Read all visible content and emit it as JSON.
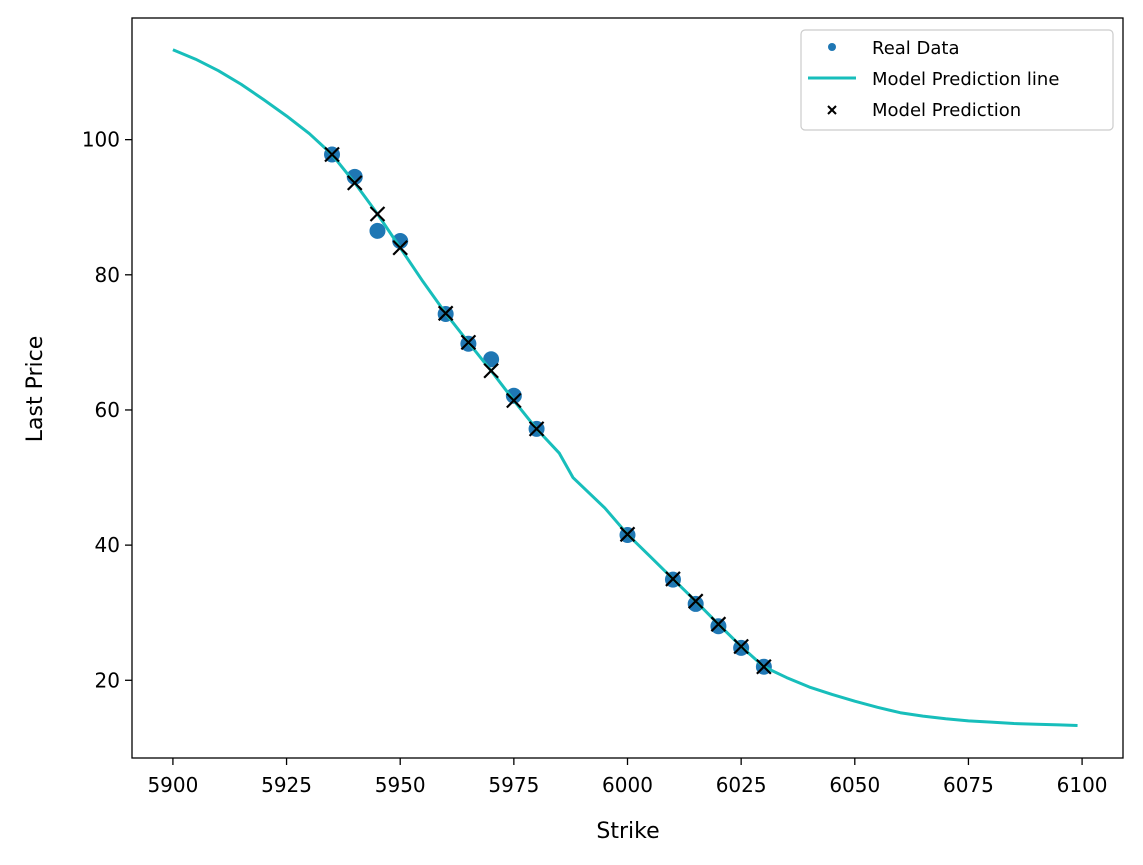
{
  "chart_data": {
    "type": "scatter",
    "xlabel": "Strike",
    "ylabel": "Last Price",
    "xlim": [
      5891,
      6109
    ],
    "ylim": [
      8.5,
      118
    ],
    "x_ticks": [
      5900,
      5925,
      5950,
      5975,
      6000,
      6025,
      6050,
      6075,
      6100
    ],
    "y_ticks": [
      20,
      40,
      60,
      80,
      100
    ],
    "grid": false,
    "legend": {
      "position": "top-right",
      "entries": [
        "Real Data",
        "Model Prediction line",
        "Model Prediction"
      ]
    },
    "series": [
      {
        "name": "Real Data",
        "kind": "scatter",
        "marker": "circle",
        "color": "#1f77b4",
        "x": [
          5935,
          5940,
          5945,
          5950,
          5960,
          5965,
          5970,
          5975,
          5980,
          6000,
          6010,
          6015,
          6020,
          6025,
          6030
        ],
        "y": [
          97.8,
          94.5,
          86.5,
          85.0,
          74.2,
          69.8,
          67.5,
          62.1,
          57.2,
          41.5,
          34.9,
          31.3,
          28.0,
          24.8,
          22.0
        ]
      },
      {
        "name": "Model Prediction line",
        "kind": "line",
        "color": "#17bebb",
        "x": [
          5900,
          5905,
          5910,
          5915,
          5920,
          5925,
          5930,
          5935,
          5940,
          5945,
          5950,
          5955,
          5960,
          5965,
          5970,
          5975,
          5980,
          5985,
          5988,
          5995,
          6000,
          6005,
          6010,
          6015,
          6020,
          6025,
          6030,
          6035,
          6040,
          6045,
          6050,
          6055,
          6060,
          6065,
          6070,
          6075,
          6080,
          6085,
          6090,
          6095,
          6099
        ],
        "y": [
          113.3,
          111.9,
          110.2,
          108.2,
          105.9,
          103.5,
          100.9,
          97.8,
          93.6,
          89.0,
          84.0,
          79.0,
          74.3,
          70.0,
          65.8,
          61.4,
          57.2,
          53.6,
          50.0,
          45.5,
          41.6,
          38.3,
          35.0,
          31.7,
          28.3,
          25.0,
          22.0,
          20.4,
          19.0,
          17.9,
          16.9,
          16.0,
          15.2,
          14.7,
          14.3,
          14.0,
          13.8,
          13.6,
          13.5,
          13.4,
          13.3
        ]
      },
      {
        "name": "Model Prediction",
        "kind": "scatter",
        "marker": "x",
        "color": "#000000",
        "x": [
          5935,
          5940,
          5945,
          5950,
          5960,
          5965,
          5970,
          5975,
          5980,
          6000,
          6010,
          6015,
          6020,
          6025,
          6030
        ],
        "y": [
          97.8,
          93.6,
          89.0,
          84.0,
          74.3,
          70.0,
          65.8,
          61.4,
          57.2,
          41.6,
          35.0,
          31.7,
          28.3,
          25.0,
          22.0
        ]
      }
    ]
  }
}
